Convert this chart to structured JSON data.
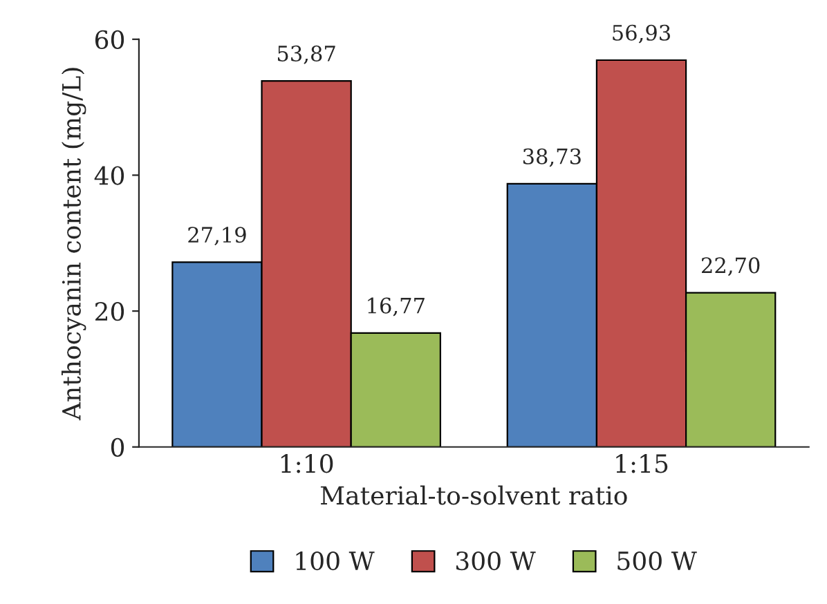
{
  "chart_data": {
    "type": "bar",
    "xlabel": "Material-to-solvent ratio",
    "ylabel": "Anthocyanin content (mg/L)",
    "categories": [
      "1:10",
      "1:15"
    ],
    "series": [
      {
        "name": "100 W",
        "color": "#4f81bd",
        "values": [
          27.19,
          38.73
        ],
        "value_labels": [
          "27,19",
          "38,73"
        ]
      },
      {
        "name": "300 W",
        "color": "#c0504d",
        "values": [
          53.87,
          56.93
        ],
        "value_labels": [
          "53,87",
          "56,93"
        ]
      },
      {
        "name": "500 W",
        "color": "#9bbb59",
        "values": [
          16.77,
          22.7
        ],
        "value_labels": [
          "16,77",
          "22,70"
        ]
      }
    ],
    "ylim": [
      0,
      60
    ],
    "yticks": [
      0,
      20,
      40,
      60
    ],
    "grid": false,
    "legend": "bottom"
  }
}
